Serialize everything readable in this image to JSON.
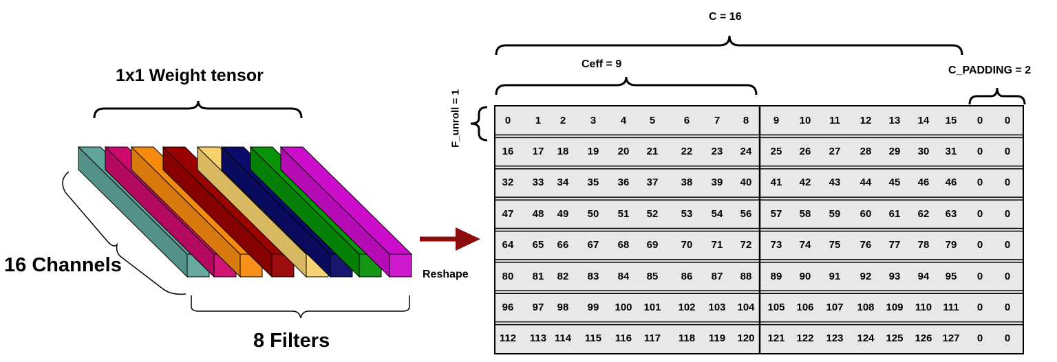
{
  "labels": {
    "weight_tensor": "1x1 Weight tensor",
    "channels": "16 Channels",
    "filters": "8 Filters",
    "reshape": "Reshape",
    "c": "C = 16",
    "ceff": "Ceff = 9",
    "c_padding": "C_PADDING = 2",
    "f_unroll": "F_unroll = 1"
  },
  "filter_colors": [
    "#5fa59b",
    "#cc0a6e",
    "#f68a0f",
    "#990000",
    "#f5d16e",
    "#0b0b6b",
    "#079207",
    "#cc0dcc"
  ],
  "arrow_color": "#8b0d0d",
  "grid_fill": "#e8e8e8",
  "grid_rows": [
    [
      "0",
      "1",
      "2",
      "3",
      "4",
      "5",
      "6",
      "7",
      "8",
      "9",
      "10",
      "11",
      "12",
      "13",
      "14",
      "15",
      "0",
      "0"
    ],
    [
      "16",
      "17",
      "18",
      "19",
      "20",
      "21",
      "22",
      "23",
      "24",
      "25",
      "26",
      "27",
      "28",
      "29",
      "30",
      "31",
      "0",
      "0"
    ],
    [
      "32",
      "33",
      "34",
      "35",
      "36",
      "37",
      "38",
      "39",
      "40",
      "41",
      "42",
      "43",
      "44",
      "45",
      "46",
      "46",
      "0",
      "0"
    ],
    [
      "47",
      "48",
      "49",
      "50",
      "51",
      "52",
      "53",
      "54",
      "56",
      "57",
      "58",
      "59",
      "60",
      "61",
      "62",
      "63",
      "0",
      "0"
    ],
    [
      "64",
      "65",
      "66",
      "67",
      "68",
      "69",
      "70",
      "71",
      "72",
      "73",
      "74",
      "75",
      "76",
      "77",
      "78",
      "79",
      "0",
      "0"
    ],
    [
      "80",
      "81",
      "82",
      "83",
      "84",
      "85",
      "86",
      "87",
      "88",
      "89",
      "90",
      "91",
      "92",
      "93",
      "94",
      "95",
      "0",
      "0"
    ],
    [
      "96",
      "97",
      "98",
      "99",
      "100",
      "101",
      "102",
      "103",
      "104",
      "105",
      "106",
      "107",
      "108",
      "109",
      "110",
      "111",
      "0",
      "0"
    ],
    [
      "112",
      "113",
      "114",
      "115",
      "116",
      "117",
      "118",
      "119",
      "120",
      "121",
      "122",
      "123",
      "124",
      "125",
      "126",
      "127",
      "0",
      "0"
    ]
  ]
}
